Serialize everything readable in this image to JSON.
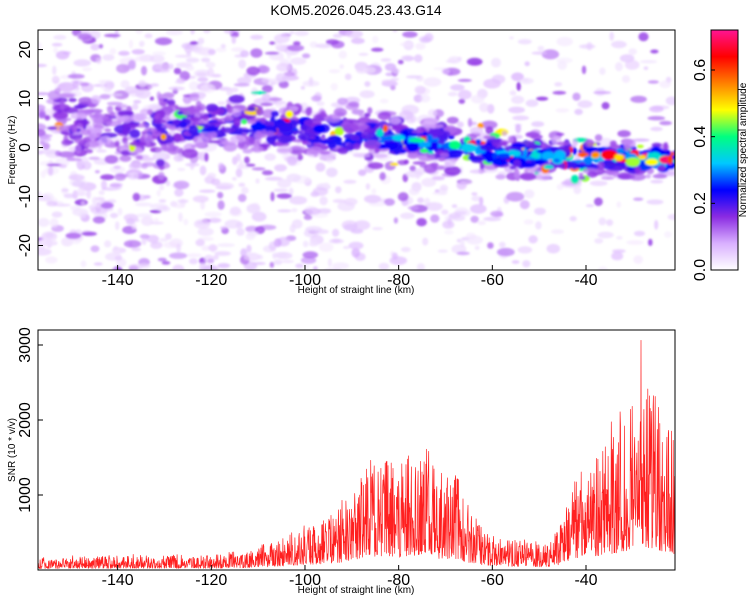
{
  "title": "KOM5.2026.045.23.43.G14",
  "chart_data": [
    {
      "type": "heatmap",
      "xlabel": "Height of straight line (km)",
      "ylabel": "Frequency (Hz)",
      "xlim": [
        -157,
        -21
      ],
      "ylim": [
        -25,
        24
      ],
      "xticks": [
        -140,
        -120,
        -100,
        -80,
        -60,
        -40
      ],
      "yticks": [
        -20,
        -10,
        0,
        10,
        20
      ],
      "xtick_labels": [
        "-140",
        "-120",
        "-100",
        "-80",
        "-60",
        "-40"
      ],
      "ytick_labels": [
        "-20",
        "-10",
        "0",
        "10",
        "20"
      ],
      "ridge": {
        "x": [
          -157,
          -145,
          -135,
          -125,
          -115,
          -105,
          -95,
          -85,
          -75,
          -65,
          -55,
          -45,
          -35,
          -25,
          -21
        ],
        "freq": [
          5,
          4,
          3.5,
          4,
          5,
          4,
          3,
          2,
          1,
          0,
          -1.5,
          -2,
          -2,
          -2.5,
          -2.5
        ]
      },
      "colorbar": {
        "label": "Normalized spectral amplitude",
        "range": [
          0.0,
          0.72
        ],
        "ticks": [
          0.0,
          0.2,
          0.4,
          0.6
        ],
        "tick_labels": [
          "0.0",
          "0.2",
          "0.4",
          "0.6"
        ],
        "colors": [
          "#ffffff",
          "#d9b0ff",
          "#8a2be2",
          "#0000ff",
          "#00c8ff",
          "#00ff80",
          "#ffff00",
          "#ff8000",
          "#ff0000",
          "#ff1493"
        ]
      }
    },
    {
      "type": "line",
      "xlabel": "Height of straight line (km)",
      "ylabel": "SNR (10 * v/v)",
      "xlim": [
        -157,
        -21
      ],
      "ylim": [
        0,
        3200
      ],
      "xticks": [
        -140,
        -120,
        -100,
        -80,
        -60,
        -40
      ],
      "yticks": [
        1000,
        2000,
        3000
      ],
      "xtick_labels": [
        "-140",
        "-120",
        "-100",
        "-80",
        "-60",
        "-40"
      ],
      "ytick_labels": [
        "1000",
        "2000",
        "3000"
      ],
      "line_color": "#ff2020",
      "envelope": {
        "x": [
          -157,
          -145,
          -135,
          -125,
          -115,
          -110,
          -105,
          -100,
          -95,
          -90,
          -86,
          -83,
          -80,
          -77,
          -74,
          -71,
          -68,
          -65,
          -62,
          -59,
          -55,
          -50,
          -47,
          -45,
          -42,
          -40,
          -37,
          -34,
          -31,
          -29,
          -27,
          -25,
          -23,
          -21
        ],
        "y": [
          150,
          180,
          200,
          180,
          220,
          300,
          420,
          600,
          700,
          1000,
          1500,
          1500,
          1400,
          1600,
          1800,
          1200,
          1300,
          800,
          550,
          450,
          400,
          350,
          400,
          700,
          1300,
          1500,
          1600,
          1800,
          2200,
          2900,
          2500,
          2300,
          2000,
          1700
        ]
      }
    }
  ]
}
